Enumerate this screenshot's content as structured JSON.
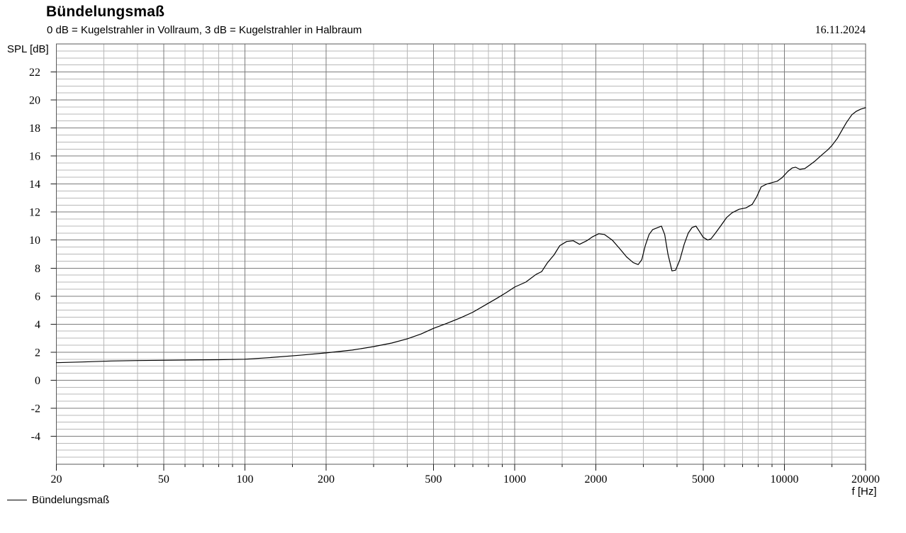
{
  "header": {
    "title": "Bündelungsmaß",
    "subtitle": "0 dB = Kugelstrahler in Vollraum, 3 dB = Kugelstrahler in Halbraum",
    "date": "16.11.2024"
  },
  "axes": {
    "y_axis_name": "SPL [dB]",
    "x_axis_name": "f [Hz]"
  },
  "legend": {
    "items": [
      {
        "label": "Bündelungsmaß",
        "color": "#000000"
      }
    ]
  },
  "colors": {
    "background": "#ffffff",
    "curve": "#000000",
    "grid_minor": "#b8b8b8",
    "grid_major": "#7d7d7d",
    "grid_border": "#5a5a5a",
    "tick": "#1a1a1a",
    "text": "#000000"
  },
  "chart_data": {
    "type": "line",
    "title": "Bündelungsmaß",
    "subtitle": "0 dB = Kugelstrahler in Vollraum, 3 dB = Kugelstrahler in Halbraum",
    "date": "16.11.2024",
    "xlabel": "f [Hz]",
    "ylabel": "SPL [dB]",
    "x_scale": "log",
    "xlim": [
      20,
      20000
    ],
    "ylim": [
      -6,
      24
    ],
    "grid": "on",
    "legend_position": "bottom-left",
    "y_major_step": 2,
    "y_minor_step": 0.5,
    "y_tick_values": [
      22,
      20,
      18,
      16,
      14,
      12,
      10,
      8,
      6,
      4,
      2,
      0,
      -2,
      -4
    ],
    "y_tick_labels": [
      "22",
      "20",
      "18",
      "16",
      "14",
      "12",
      "10",
      "8",
      "6",
      "4",
      "2",
      "0",
      "-2",
      "-4"
    ],
    "x_tick_values": [
      20,
      50,
      100,
      200,
      500,
      1000,
      2000,
      5000,
      10000,
      20000
    ],
    "x_tick_labels": [
      "20",
      "50",
      "100",
      "200",
      "500",
      "1000",
      "2000",
      "5000",
      "10000",
      "20000"
    ],
    "x_minor_gridlines": [
      30,
      40,
      60,
      70,
      80,
      90,
      150,
      300,
      400,
      600,
      700,
      800,
      900,
      1500,
      3000,
      4000,
      6000,
      7000,
      8000,
      9000,
      15000
    ],
    "series": [
      {
        "name": "Bündelungsmaß",
        "color": "#000000",
        "points": [
          [
            20,
            1.25
          ],
          [
            25,
            1.3
          ],
          [
            32,
            1.37
          ],
          [
            40,
            1.4
          ],
          [
            50,
            1.42
          ],
          [
            63,
            1.44
          ],
          [
            80,
            1.46
          ],
          [
            100,
            1.5
          ],
          [
            125,
            1.62
          ],
          [
            160,
            1.78
          ],
          [
            200,
            1.95
          ],
          [
            250,
            2.15
          ],
          [
            300,
            2.4
          ],
          [
            350,
            2.65
          ],
          [
            400,
            2.95
          ],
          [
            450,
            3.3
          ],
          [
            500,
            3.7
          ],
          [
            560,
            4.05
          ],
          [
            630,
            4.45
          ],
          [
            700,
            4.85
          ],
          [
            800,
            5.5
          ],
          [
            860,
            5.85
          ],
          [
            930,
            6.25
          ],
          [
            1000,
            6.65
          ],
          [
            1100,
            7.0
          ],
          [
            1200,
            7.55
          ],
          [
            1260,
            7.75
          ],
          [
            1320,
            8.35
          ],
          [
            1400,
            8.95
          ],
          [
            1470,
            9.6
          ],
          [
            1560,
            9.9
          ],
          [
            1650,
            9.95
          ],
          [
            1740,
            9.7
          ],
          [
            1850,
            9.95
          ],
          [
            1950,
            10.25
          ],
          [
            2050,
            10.45
          ],
          [
            2150,
            10.4
          ],
          [
            2300,
            10.0
          ],
          [
            2450,
            9.4
          ],
          [
            2600,
            8.8
          ],
          [
            2750,
            8.4
          ],
          [
            2870,
            8.25
          ],
          [
            2960,
            8.6
          ],
          [
            3050,
            9.6
          ],
          [
            3150,
            10.4
          ],
          [
            3250,
            10.75
          ],
          [
            3400,
            10.9
          ],
          [
            3500,
            11.0
          ],
          [
            3600,
            10.4
          ],
          [
            3700,
            9.0
          ],
          [
            3830,
            7.8
          ],
          [
            3950,
            7.85
          ],
          [
            4100,
            8.6
          ],
          [
            4250,
            9.7
          ],
          [
            4400,
            10.5
          ],
          [
            4550,
            10.9
          ],
          [
            4700,
            11.0
          ],
          [
            4850,
            10.6
          ],
          [
            5000,
            10.2
          ],
          [
            5200,
            10.0
          ],
          [
            5350,
            10.1
          ],
          [
            5550,
            10.5
          ],
          [
            5800,
            11.0
          ],
          [
            6100,
            11.6
          ],
          [
            6400,
            11.95
          ],
          [
            6800,
            12.2
          ],
          [
            7200,
            12.3
          ],
          [
            7600,
            12.55
          ],
          [
            7900,
            13.1
          ],
          [
            8200,
            13.8
          ],
          [
            8600,
            14.0
          ],
          [
            9000,
            14.1
          ],
          [
            9400,
            14.2
          ],
          [
            9800,
            14.45
          ],
          [
            10300,
            14.9
          ],
          [
            10700,
            15.15
          ],
          [
            11000,
            15.2
          ],
          [
            11400,
            15.05
          ],
          [
            11900,
            15.1
          ],
          [
            12400,
            15.35
          ],
          [
            13000,
            15.65
          ],
          [
            13800,
            16.1
          ],
          [
            14500,
            16.45
          ],
          [
            15000,
            16.75
          ],
          [
            15700,
            17.25
          ],
          [
            16300,
            17.8
          ],
          [
            17000,
            18.4
          ],
          [
            17800,
            18.95
          ],
          [
            18500,
            19.2
          ],
          [
            19200,
            19.35
          ],
          [
            20000,
            19.45
          ]
        ]
      }
    ]
  }
}
